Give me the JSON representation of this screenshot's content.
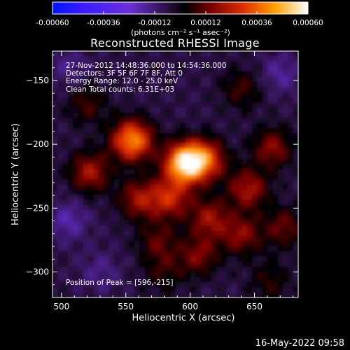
{
  "chart_data": {
    "type": "heatmap",
    "title": "Reconstructed RHESSI Image",
    "xlabel": "Heliocentric X (arcsec)",
    "ylabel": "Heliocentric Y (arcsec)",
    "xlim": [
      493,
      684
    ],
    "ylim": [
      -320,
      -127
    ],
    "x_ticks": [
      500,
      550,
      600,
      650
    ],
    "y_ticks": [
      -150,
      -200,
      -250,
      -300
    ],
    "colorbar": {
      "ticks": [
        "-0.00060",
        "-0.00036",
        "-0.00012",
        "0.00012",
        "0.00036",
        "0.00060"
      ],
      "range": [
        -0.0006,
        0.0006
      ],
      "unit_label": "(photons cm⁻² s⁻¹ asec⁻²)"
    },
    "annotations": [
      "27-Nov-2012 14:48:36.000 to 14:54:36.000",
      "Detectors: 3F 5F 6F 7F 8F, Att 0",
      "Energy Range: 12.0 - 25.0 keV",
      "Clean    Total counts: 6.31E+03"
    ],
    "peak_label": "Position of Peak = [596,-215]",
    "sources": [
      {
        "x": 596,
        "y": -215,
        "intensity": 0.0006
      },
      {
        "x": 555,
        "y": -197,
        "intensity": 0.00048
      },
      {
        "x": 612,
        "y": -212,
        "intensity": 0.00034
      },
      {
        "x": 584,
        "y": -242,
        "intensity": 0.0003
      },
      {
        "x": 522,
        "y": -222,
        "intensity": 0.00026
      },
      {
        "x": 560,
        "y": -243,
        "intensity": 0.00024
      },
      {
        "x": 645,
        "y": -235,
        "intensity": 0.00026
      },
      {
        "x": 664,
        "y": -203,
        "intensity": 0.00022
      },
      {
        "x": 615,
        "y": -258,
        "intensity": 0.00024
      },
      {
        "x": 640,
        "y": -271,
        "intensity": 0.00022
      },
      {
        "x": 607,
        "y": -287,
        "intensity": 0.0002
      },
      {
        "x": 575,
        "y": -276,
        "intensity": 0.00016
      },
      {
        "x": 520,
        "y": -169,
        "intensity": 0.00014
      },
      {
        "x": 640,
        "y": -157,
        "intensity": 0.00014
      },
      {
        "x": 673,
        "y": -265,
        "intensity": 0.00018
      },
      {
        "x": 662,
        "y": -307,
        "intensity": 0.00012
      },
      {
        "x": 580,
        "y": -300,
        "intensity": 0.00012
      },
      {
        "x": 530,
        "y": -300,
        "intensity": -8e-05
      },
      {
        "x": 505,
        "y": -260,
        "intensity": -0.00012
      },
      {
        "x": 670,
        "y": -145,
        "intensity": -0.0001
      },
      {
        "x": 505,
        "y": -140,
        "intensity": -8e-05
      }
    ]
  },
  "footer": {
    "timestamp": "16-May-2022 09:58"
  }
}
